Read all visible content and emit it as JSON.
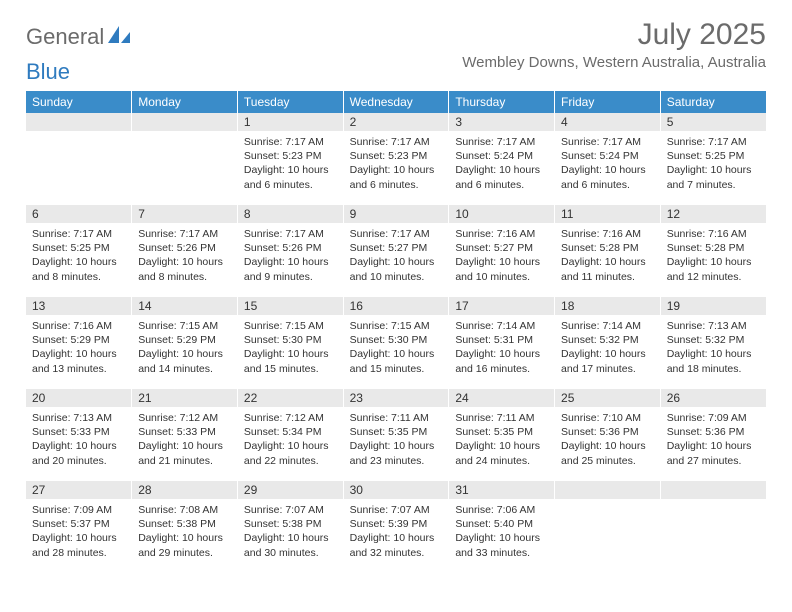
{
  "brand": {
    "text_gray": "General",
    "text_blue": "Blue",
    "accent_color": "#2f7bbf",
    "gray_color": "#6b6b6b"
  },
  "title": "July 2025",
  "location": "Wembley Downs, Western Australia, Australia",
  "colors": {
    "header_bg": "#3a8cc9",
    "header_text": "#ffffff",
    "daynum_bg": "#e9e9e9",
    "body_bg": "#ffffff",
    "text": "#333333"
  },
  "weekdays": [
    "Sunday",
    "Monday",
    "Tuesday",
    "Wednesday",
    "Thursday",
    "Friday",
    "Saturday"
  ],
  "cells": [
    {
      "blank": true
    },
    {
      "blank": true
    },
    {
      "day": "1",
      "sunrise": "Sunrise: 7:17 AM",
      "sunset": "Sunset: 5:23 PM",
      "dl": "Daylight: 10 hours and 6 minutes."
    },
    {
      "day": "2",
      "sunrise": "Sunrise: 7:17 AM",
      "sunset": "Sunset: 5:23 PM",
      "dl": "Daylight: 10 hours and 6 minutes."
    },
    {
      "day": "3",
      "sunrise": "Sunrise: 7:17 AM",
      "sunset": "Sunset: 5:24 PM",
      "dl": "Daylight: 10 hours and 6 minutes."
    },
    {
      "day": "4",
      "sunrise": "Sunrise: 7:17 AM",
      "sunset": "Sunset: 5:24 PM",
      "dl": "Daylight: 10 hours and 6 minutes."
    },
    {
      "day": "5",
      "sunrise": "Sunrise: 7:17 AM",
      "sunset": "Sunset: 5:25 PM",
      "dl": "Daylight: 10 hours and 7 minutes."
    },
    {
      "day": "6",
      "sunrise": "Sunrise: 7:17 AM",
      "sunset": "Sunset: 5:25 PM",
      "dl": "Daylight: 10 hours and 8 minutes."
    },
    {
      "day": "7",
      "sunrise": "Sunrise: 7:17 AM",
      "sunset": "Sunset: 5:26 PM",
      "dl": "Daylight: 10 hours and 8 minutes."
    },
    {
      "day": "8",
      "sunrise": "Sunrise: 7:17 AM",
      "sunset": "Sunset: 5:26 PM",
      "dl": "Daylight: 10 hours and 9 minutes."
    },
    {
      "day": "9",
      "sunrise": "Sunrise: 7:17 AM",
      "sunset": "Sunset: 5:27 PM",
      "dl": "Daylight: 10 hours and 10 minutes."
    },
    {
      "day": "10",
      "sunrise": "Sunrise: 7:16 AM",
      "sunset": "Sunset: 5:27 PM",
      "dl": "Daylight: 10 hours and 10 minutes."
    },
    {
      "day": "11",
      "sunrise": "Sunrise: 7:16 AM",
      "sunset": "Sunset: 5:28 PM",
      "dl": "Daylight: 10 hours and 11 minutes."
    },
    {
      "day": "12",
      "sunrise": "Sunrise: 7:16 AM",
      "sunset": "Sunset: 5:28 PM",
      "dl": "Daylight: 10 hours and 12 minutes."
    },
    {
      "day": "13",
      "sunrise": "Sunrise: 7:16 AM",
      "sunset": "Sunset: 5:29 PM",
      "dl": "Daylight: 10 hours and 13 minutes."
    },
    {
      "day": "14",
      "sunrise": "Sunrise: 7:15 AM",
      "sunset": "Sunset: 5:29 PM",
      "dl": "Daylight: 10 hours and 14 minutes."
    },
    {
      "day": "15",
      "sunrise": "Sunrise: 7:15 AM",
      "sunset": "Sunset: 5:30 PM",
      "dl": "Daylight: 10 hours and 15 minutes."
    },
    {
      "day": "16",
      "sunrise": "Sunrise: 7:15 AM",
      "sunset": "Sunset: 5:30 PM",
      "dl": "Daylight: 10 hours and 15 minutes."
    },
    {
      "day": "17",
      "sunrise": "Sunrise: 7:14 AM",
      "sunset": "Sunset: 5:31 PM",
      "dl": "Daylight: 10 hours and 16 minutes."
    },
    {
      "day": "18",
      "sunrise": "Sunrise: 7:14 AM",
      "sunset": "Sunset: 5:32 PM",
      "dl": "Daylight: 10 hours and 17 minutes."
    },
    {
      "day": "19",
      "sunrise": "Sunrise: 7:13 AM",
      "sunset": "Sunset: 5:32 PM",
      "dl": "Daylight: 10 hours and 18 minutes."
    },
    {
      "day": "20",
      "sunrise": "Sunrise: 7:13 AM",
      "sunset": "Sunset: 5:33 PM",
      "dl": "Daylight: 10 hours and 20 minutes."
    },
    {
      "day": "21",
      "sunrise": "Sunrise: 7:12 AM",
      "sunset": "Sunset: 5:33 PM",
      "dl": "Daylight: 10 hours and 21 minutes."
    },
    {
      "day": "22",
      "sunrise": "Sunrise: 7:12 AM",
      "sunset": "Sunset: 5:34 PM",
      "dl": "Daylight: 10 hours and 22 minutes."
    },
    {
      "day": "23",
      "sunrise": "Sunrise: 7:11 AM",
      "sunset": "Sunset: 5:35 PM",
      "dl": "Daylight: 10 hours and 23 minutes."
    },
    {
      "day": "24",
      "sunrise": "Sunrise: 7:11 AM",
      "sunset": "Sunset: 5:35 PM",
      "dl": "Daylight: 10 hours and 24 minutes."
    },
    {
      "day": "25",
      "sunrise": "Sunrise: 7:10 AM",
      "sunset": "Sunset: 5:36 PM",
      "dl": "Daylight: 10 hours and 25 minutes."
    },
    {
      "day": "26",
      "sunrise": "Sunrise: 7:09 AM",
      "sunset": "Sunset: 5:36 PM",
      "dl": "Daylight: 10 hours and 27 minutes."
    },
    {
      "day": "27",
      "sunrise": "Sunrise: 7:09 AM",
      "sunset": "Sunset: 5:37 PM",
      "dl": "Daylight: 10 hours and 28 minutes."
    },
    {
      "day": "28",
      "sunrise": "Sunrise: 7:08 AM",
      "sunset": "Sunset: 5:38 PM",
      "dl": "Daylight: 10 hours and 29 minutes."
    },
    {
      "day": "29",
      "sunrise": "Sunrise: 7:07 AM",
      "sunset": "Sunset: 5:38 PM",
      "dl": "Daylight: 10 hours and 30 minutes."
    },
    {
      "day": "30",
      "sunrise": "Sunrise: 7:07 AM",
      "sunset": "Sunset: 5:39 PM",
      "dl": "Daylight: 10 hours and 32 minutes."
    },
    {
      "day": "31",
      "sunrise": "Sunrise: 7:06 AM",
      "sunset": "Sunset: 5:40 PM",
      "dl": "Daylight: 10 hours and 33 minutes."
    },
    {
      "blank": true
    },
    {
      "blank": true
    }
  ]
}
